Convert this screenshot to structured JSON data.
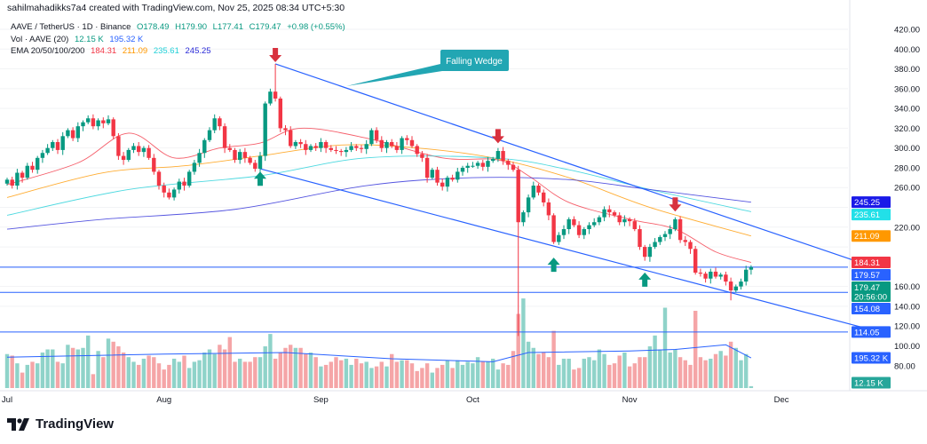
{
  "credit": "sahilmahadikks7a4 created with TradingView.com, Nov 25, 2025 08:34 UTC+5:30",
  "legend": {
    "symbol": "AAVE / TetherUS · 1D · Binance",
    "o": "O178.49",
    "h": "H179.90",
    "l": "L177.41",
    "c": "C179.47",
    "change": "+0.98 (+0.55%)",
    "vol_label": "Vol · AAVE (20)",
    "vol": "12.15 K",
    "vol_ma": "195.32 K",
    "ema_label": "EMA 20/50/100/200",
    "ema20": "184.31",
    "ema50": "211.09",
    "ema100": "235.61",
    "ema200": "245.25"
  },
  "logo": "TradingView",
  "colors": {
    "up": "#089981",
    "down": "#f23645",
    "ema20": "#f23645",
    "ema50": "#ff9800",
    "ema100": "#22d0d8",
    "ema200": "#2a2ad8",
    "lines": "#2962ff",
    "callout": "#22a6b3"
  },
  "chart_data": {
    "type": "candlestick",
    "start_date": "2025-07-01",
    "ylim": [
      80,
      420
    ],
    "y_ticks": [
      "420.00",
      "400.00",
      "380.00",
      "360.00",
      "340.00",
      "320.00",
      "300.00",
      "280.00",
      "260.00",
      "220.00",
      "160.00",
      "140.00",
      "120.00",
      "100.00",
      "80.00"
    ],
    "x_ticks": [
      {
        "label": "Jul",
        "date": "2025-07-01"
      },
      {
        "label": "Aug",
        "date": "2025-08-01"
      },
      {
        "label": "Sep",
        "date": "2025-09-01"
      },
      {
        "label": "Oct",
        "date": "2025-10-01"
      },
      {
        "label": "Nov",
        "date": "2025-11-01"
      },
      {
        "label": "Dec",
        "date": "2025-12-01"
      }
    ],
    "close": [
      268,
      262,
      275,
      270,
      282,
      278,
      290,
      295,
      300,
      306,
      298,
      312,
      318,
      310,
      322,
      326,
      330,
      322,
      328,
      325,
      329,
      312,
      292,
      288,
      298,
      302,
      296,
      300,
      290,
      276,
      262,
      255,
      250,
      258,
      266,
      262,
      276,
      285,
      295,
      308,
      318,
      330,
      322,
      300,
      298,
      288,
      296,
      290,
      285,
      279,
      292,
      345,
      357,
      350,
      320,
      318,
      302,
      306,
      304,
      298,
      302,
      300,
      306,
      300,
      298,
      297,
      296,
      298,
      302,
      300,
      299,
      304,
      318,
      308,
      300,
      306,
      302,
      298,
      310,
      308,
      302,
      294,
      290,
      270,
      278,
      265,
      261,
      270,
      268,
      276,
      280,
      282,
      282,
      285,
      281,
      287,
      289,
      297,
      287,
      283,
      278,
      225,
      235,
      250,
      262,
      255,
      245,
      232,
      205,
      212,
      218,
      228,
      222,
      212,
      218,
      222,
      225,
      230,
      238,
      235,
      232,
      225,
      228,
      226,
      218,
      200,
      190,
      200,
      205,
      210,
      213,
      218,
      228,
      207,
      205,
      198,
      174,
      173,
      168,
      175,
      170,
      172,
      165,
      156,
      160,
      165,
      177,
      179.47
    ],
    "wick_extremes": [
      {
        "date": "2025-08-23",
        "high": 385
      },
      {
        "date": "2025-10-10",
        "low": 110
      },
      {
        "date": "2025-11-21",
        "low": 146
      }
    ],
    "volume_k": [
      220,
      210,
      160,
      100,
      150,
      170,
      160,
      230,
      250,
      250,
      170,
      160,
      280,
      260,
      250,
      260,
      340,
      90,
      240,
      200,
      320,
      300,
      270,
      230,
      200,
      170,
      150,
      190,
      210,
      200,
      160,
      120,
      150,
      190,
      170,
      210,
      130,
      170,
      180,
      230,
      250,
      220,
      280,
      250,
      330,
      170,
      190,
      170,
      170,
      200,
      200,
      270,
      350,
      190,
      230,
      260,
      280,
      260,
      260,
      220,
      230,
      200,
      140,
      150,
      170,
      200,
      180,
      190,
      150,
      190,
      160,
      170,
      130,
      140,
      170,
      140,
      220,
      170,
      180,
      180,
      160,
      110,
      130,
      160,
      100,
      130,
      150,
      180,
      130,
      180,
      150,
      170,
      160,
      200,
      170,
      170,
      190,
      120,
      160,
      150,
      240,
      480,
      580,
      300,
      260,
      220,
      230,
      200,
      370,
      150,
      190,
      190,
      120,
      130,
      190,
      200,
      180,
      250,
      220,
      150,
      160,
      210,
      230,
      140,
      160,
      200,
      200,
      270,
      340,
      250,
      520,
      230,
      250,
      200,
      180,
      150,
      500,
      200,
      180,
      190,
      220,
      240,
      210,
      300,
      260,
      180,
      220,
      12.15
    ],
    "volume_ma_k": [
      [
        "2025-07-01",
        200
      ],
      [
        "2025-08-01",
        220
      ],
      [
        "2025-08-25",
        230
      ],
      [
        "2025-09-15",
        190
      ],
      [
        "2025-10-05",
        170
      ],
      [
        "2025-10-12",
        230
      ],
      [
        "2025-11-01",
        240
      ],
      [
        "2025-11-10",
        250
      ],
      [
        "2025-11-20",
        280
      ],
      [
        "2025-11-25",
        195.32
      ]
    ],
    "ema": [
      {
        "name": "EMA 20",
        "color": "#f23645",
        "points": [
          [
            "2025-07-01",
            263
          ],
          [
            "2025-07-15",
            285
          ],
          [
            "2025-07-25",
            315
          ],
          [
            "2025-08-03",
            290
          ],
          [
            "2025-08-12",
            300
          ],
          [
            "2025-08-20",
            305
          ],
          [
            "2025-08-28",
            320
          ],
          [
            "2025-09-10",
            310
          ],
          [
            "2025-09-25",
            290
          ],
          [
            "2025-10-06",
            288
          ],
          [
            "2025-10-12",
            272
          ],
          [
            "2025-10-20",
            245
          ],
          [
            "2025-11-01",
            228
          ],
          [
            "2025-11-10",
            218
          ],
          [
            "2025-11-18",
            195
          ],
          [
            "2025-11-25",
            184.31
          ]
        ]
      },
      {
        "name": "EMA 50",
        "color": "#ff9800",
        "points": [
          [
            "2025-07-01",
            250
          ],
          [
            "2025-07-20",
            275
          ],
          [
            "2025-08-05",
            282
          ],
          [
            "2025-08-20",
            292
          ],
          [
            "2025-09-05",
            303
          ],
          [
            "2025-09-20",
            300
          ],
          [
            "2025-10-05",
            290
          ],
          [
            "2025-10-20",
            270
          ],
          [
            "2025-11-05",
            240
          ],
          [
            "2025-11-25",
            211.09
          ]
        ]
      },
      {
        "name": "EMA 100",
        "color": "#22d0d8",
        "points": [
          [
            "2025-07-01",
            232
          ],
          [
            "2025-07-25",
            258
          ],
          [
            "2025-08-20",
            272
          ],
          [
            "2025-09-10",
            290
          ],
          [
            "2025-10-05",
            290
          ],
          [
            "2025-10-20",
            278
          ],
          [
            "2025-11-05",
            258
          ],
          [
            "2025-11-25",
            235.61
          ]
        ]
      },
      {
        "name": "EMA 200",
        "color": "#2a2ad8",
        "points": [
          [
            "2025-07-01",
            218
          ],
          [
            "2025-07-20",
            228
          ],
          [
            "2025-08-15",
            238
          ],
          [
            "2025-09-10",
            262
          ],
          [
            "2025-10-01",
            270
          ],
          [
            "2025-10-20",
            268
          ],
          [
            "2025-11-05",
            258
          ],
          [
            "2025-11-25",
            245.25
          ]
        ]
      }
    ],
    "trendlines": [
      {
        "name": "wedge-upper",
        "from": [
          "2025-08-23",
          385
        ],
        "to": [
          "2025-12-19",
          180
        ]
      },
      {
        "name": "wedge-lower",
        "from": [
          "2025-08-20",
          279
        ],
        "to": [
          "2025-12-19",
          116
        ]
      }
    ],
    "horizontal_levels": [
      179.57,
      154.08,
      114.05
    ],
    "annotation": {
      "text": "Falling Wedge"
    },
    "sell_arrows": [
      "2025-08-23",
      "2025-10-06",
      "2025-11-10"
    ],
    "buy_arrows": [
      "2025-08-20",
      "2025-10-17",
      "2025-11-04"
    ],
    "price_tags": [
      {
        "text": "245.25",
        "value": 245.25,
        "color": "#1a1ae8"
      },
      {
        "text": "235.61",
        "value": 235.61,
        "color": "#22e0e8"
      },
      {
        "text": "211.09",
        "value": 211.09,
        "color": "#ff9800"
      },
      {
        "text": "184.31",
        "value": 184.31,
        "color": "#f23645"
      },
      {
        "text": "179.57",
        "value": 179.57,
        "color": "#2962ff"
      },
      {
        "text": "179.47",
        "sub": "20:56:00",
        "value": 179.47,
        "color": "#089981"
      },
      {
        "text": "154.08",
        "value": 154.08,
        "color": "#2962ff"
      },
      {
        "text": "114.05",
        "value": 114.05,
        "color": "#2962ff"
      }
    ],
    "volume_tags": [
      {
        "text": "195.32 K",
        "color": "#2962ff"
      },
      {
        "text": "12.15 K",
        "color": "#26a69a"
      }
    ]
  }
}
